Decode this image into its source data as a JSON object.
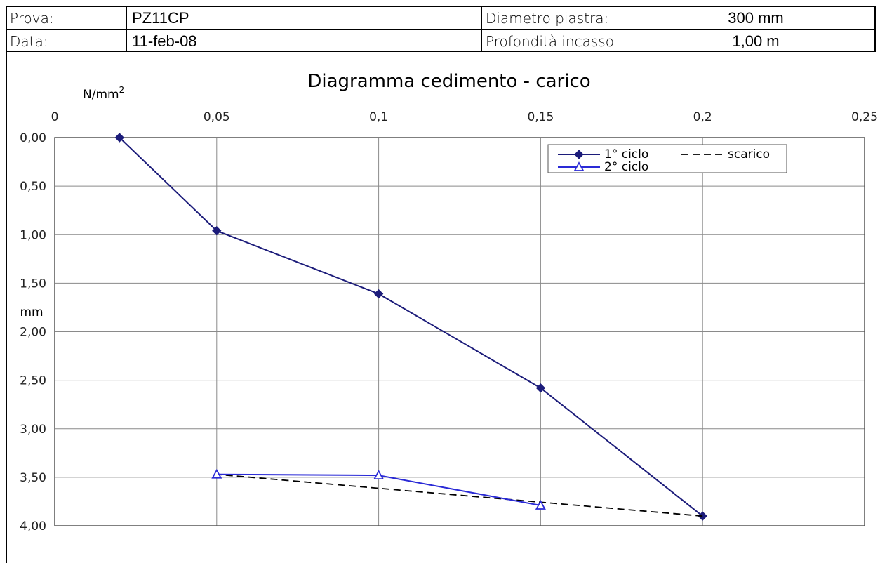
{
  "header": {
    "prova_label": "Prova:",
    "prova_value": "PZ11CP",
    "data_label": "Data:",
    "data_value": "11-feb-08",
    "diametro_label": "Diametro piastra:",
    "diametro_value": "300 mm",
    "profondita_label": "Profondità incasso",
    "profondita_value": "1,00 m"
  },
  "chart_data": {
    "type": "line",
    "title": "Diagramma cedimento - carico",
    "xlabel": "N/mm",
    "xlabel_sup": "2",
    "ylabel": "mm",
    "xlim": [
      0,
      0.25
    ],
    "ylim": [
      0,
      4
    ],
    "y_inverted": true,
    "x_axis_position": "top",
    "x_ticks": [
      0,
      0.05,
      0.1,
      0.15,
      0.2,
      0.25
    ],
    "x_tick_labels": [
      "0",
      "0,05",
      "0,1",
      "0,15",
      "0,2",
      "0,25"
    ],
    "y_ticks": [
      0,
      0.5,
      1,
      1.5,
      2,
      2.5,
      3,
      3.5,
      4
    ],
    "y_tick_labels": [
      "0,00",
      "0,50",
      "1,00",
      "1,50",
      "2,00",
      "2,50",
      "3,00",
      "3,50",
      "4,00"
    ],
    "grid": true,
    "legend_position": "top-right",
    "series": [
      {
        "name": "1° ciclo",
        "color": "#1c1c7a",
        "marker": "diamond",
        "dash": "solid",
        "x": [
          0.02,
          0.05,
          0.1,
          0.15,
          0.2
        ],
        "y": [
          0.0,
          0.96,
          1.61,
          2.58,
          3.9
        ]
      },
      {
        "name": "scarico",
        "color": "#000000",
        "marker": "none",
        "dash": "dashed",
        "x": [
          0.2,
          0.05
        ],
        "y": [
          3.9,
          3.47
        ]
      },
      {
        "name": "2° ciclo",
        "color": "#2a2ad6",
        "marker": "triangle",
        "dash": "solid",
        "x": [
          0.05,
          0.1,
          0.15
        ],
        "y": [
          3.47,
          3.48,
          3.79
        ]
      }
    ]
  }
}
